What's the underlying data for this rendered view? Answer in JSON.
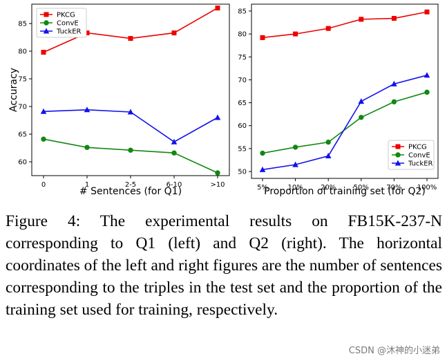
{
  "chart_data": [
    {
      "type": "line",
      "title": "",
      "categories": [
        "0",
        "1",
        "2-5",
        "6-10",
        ">10"
      ],
      "xlabel": "# Sentences (for Q1)",
      "ylabel": "Accuracy",
      "ylim": [
        57.5,
        88.5
      ],
      "yticks": [
        60,
        65,
        70,
        75,
        80,
        85
      ],
      "legend_position": "top-left",
      "series": [
        {
          "name": "PKCG",
          "color": "#ee0000",
          "marker": "square",
          "values": [
            79.8,
            83.3,
            82.3,
            83.3,
            87.8
          ]
        },
        {
          "name": "ConvE",
          "color": "#118811",
          "marker": "circle",
          "values": [
            64.1,
            62.6,
            62.1,
            61.6,
            58.0
          ]
        },
        {
          "name": "TuckER",
          "color": "#1111ee",
          "marker": "triangle",
          "values": [
            69.1,
            69.4,
            69.0,
            63.6,
            68.0
          ]
        }
      ]
    },
    {
      "type": "line",
      "title": "",
      "categories": [
        "5%",
        "10%",
        "20%",
        "50%",
        "70%",
        "100%"
      ],
      "xlabel": "Proportion of training set (for Q2)",
      "ylabel": "",
      "ylim": [
        48.5,
        86.5
      ],
      "yticks": [
        50,
        55,
        60,
        65,
        70,
        75,
        80,
        85
      ],
      "legend_position": "bottom-right",
      "series": [
        {
          "name": "PKCG",
          "color": "#ee0000",
          "marker": "square",
          "values": [
            79.2,
            80.0,
            81.2,
            83.2,
            83.4,
            84.8
          ]
        },
        {
          "name": "ConvE",
          "color": "#118811",
          "marker": "circle",
          "values": [
            54.0,
            55.3,
            56.4,
            61.8,
            65.2,
            67.3
          ]
        },
        {
          "name": "TuckER",
          "color": "#1111ee",
          "marker": "triangle",
          "values": [
            50.4,
            51.5,
            53.4,
            65.3,
            69.1,
            71.0
          ]
        }
      ]
    }
  ],
  "caption": "Figure 4: The experimental results on FB15K-237-N corresponding to Q1 (left) and Q2 (right). The horizontal coordinates of the left and right figures are the number of sentences corresponding to the triples in the test set and the proportion of the training set used for training, respectively.",
  "watermark": "CSDN @沐神的小迷弟"
}
